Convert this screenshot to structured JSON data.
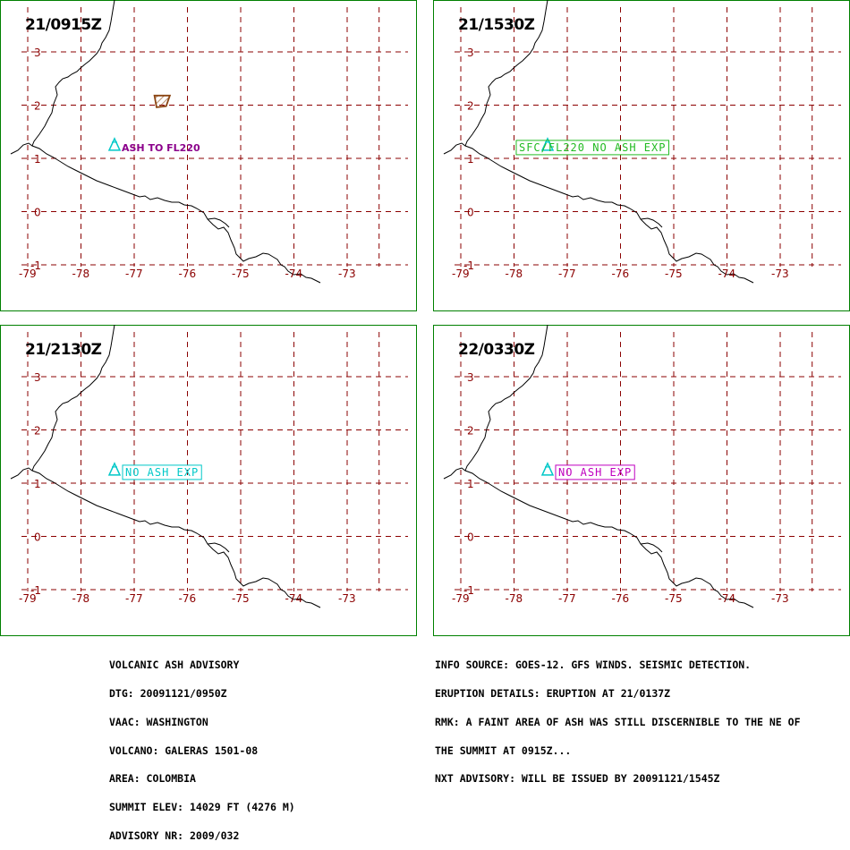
{
  "panels": [
    {
      "time": "21/0915Z",
      "label": "ASH TO FL220",
      "label_style": "plain",
      "label_color": "#8b008b",
      "ash_polygon": [
        [
          -76.62,
          2.18
        ],
        [
          -76.33,
          2.18
        ],
        [
          -76.4,
          1.98
        ],
        [
          -76.58,
          1.96
        ]
      ]
    },
    {
      "time": "21/1530Z",
      "label": "SFC/FL220 NO ASH EXP",
      "label_style": "box",
      "label_color": "#22bb22"
    },
    {
      "time": "21/2130Z",
      "label": "NO ASH EXP",
      "label_style": "box",
      "label_color": "#00c8c8"
    },
    {
      "time": "22/0330Z",
      "label": "NO ASH EXP",
      "label_style": "box",
      "label_color": "#c000c0"
    }
  ],
  "axes": {
    "lon_ticks": [
      "-79",
      "-78",
      "-77",
      "-76",
      "-75",
      "-74",
      "-73"
    ],
    "lat_ticks": [
      "3",
      "2",
      "1",
      "0",
      "-1"
    ]
  },
  "volcano": {
    "name": "GALERAS",
    "lon": -77.37,
    "lat": 1.22,
    "icon": "volcano-triangle-icon",
    "color": "#00c8c8"
  },
  "colors": {
    "grid": "#8b0000",
    "coast": "#000000",
    "frame": "#008000",
    "ash": "#8b4513"
  },
  "advisory_left": [
    "VOLCANIC ASH ADVISORY",
    "DTG: 20091121/0950Z",
    "VAAC: WASHINGTON",
    "VOLCANO: GALERAS 1501-08",
    "AREA: COLOMBIA",
    "SUMMIT ELEV: 14029 FT (4276 M)",
    "ADVISORY NR: 2009/032"
  ],
  "advisory_right": [
    "INFO SOURCE: GOES-12. GFS WINDS. SEISMIC DETECTION.",
    "ERUPTION DETAILS: ERUPTION AT 21/0137Z",
    "RMK: A FAINT AREA OF ASH WAS STILL DISCERNIBLE TO THE NE OF",
    "THE SUMMIT AT 0915Z...",
    "NXT ADVISORY: WILL BE ISSUED BY 20091121/1545Z"
  ]
}
